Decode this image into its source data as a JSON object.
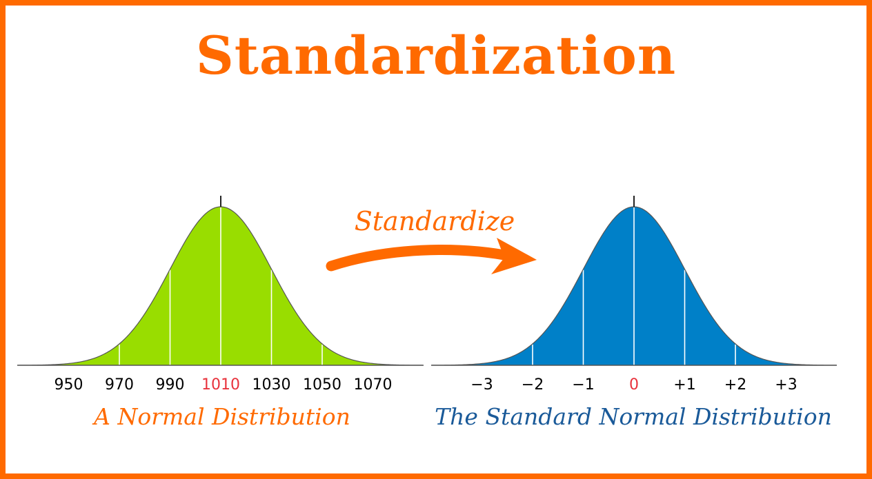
{
  "title": "Standardization",
  "arrow_label": "Standardize",
  "colors": {
    "border": "#ff6a00",
    "title": "#ff6a00",
    "arrow": "#ff6a00",
    "left_fill": "#99dd00",
    "right_fill": "#0080c8",
    "left_caption": "#ff6a00",
    "right_caption": "#1a5a99",
    "highlight": "#e8323c",
    "gridline": "#ffffff",
    "outline": "#555555"
  },
  "left_distribution": {
    "caption": "A Normal Distribution",
    "mean": 1010,
    "sd": 20,
    "ticks": [
      {
        "value": 950,
        "label": "950",
        "highlight": false
      },
      {
        "value": 970,
        "label": "970",
        "highlight": false
      },
      {
        "value": 990,
        "label": "990",
        "highlight": false
      },
      {
        "value": 1010,
        "label": "1010",
        "highlight": true
      },
      {
        "value": 1030,
        "label": "1030",
        "highlight": false
      },
      {
        "value": 1050,
        "label": "1050",
        "highlight": false
      },
      {
        "value": 1070,
        "label": "1070",
        "highlight": false
      }
    ]
  },
  "right_distribution": {
    "caption": "The Standard Normal Distribution",
    "mean": 0,
    "sd": 1,
    "ticks": [
      {
        "value": -3,
        "label": "−3",
        "highlight": false
      },
      {
        "value": -2,
        "label": "−2",
        "highlight": false
      },
      {
        "value": -1,
        "label": "−1",
        "highlight": false
      },
      {
        "value": 0,
        "label": "0",
        "highlight": true
      },
      {
        "value": 1,
        "label": "+1",
        "highlight": false
      },
      {
        "value": 2,
        "label": "+2",
        "highlight": false
      },
      {
        "value": 3,
        "label": "+3",
        "highlight": false
      }
    ]
  }
}
